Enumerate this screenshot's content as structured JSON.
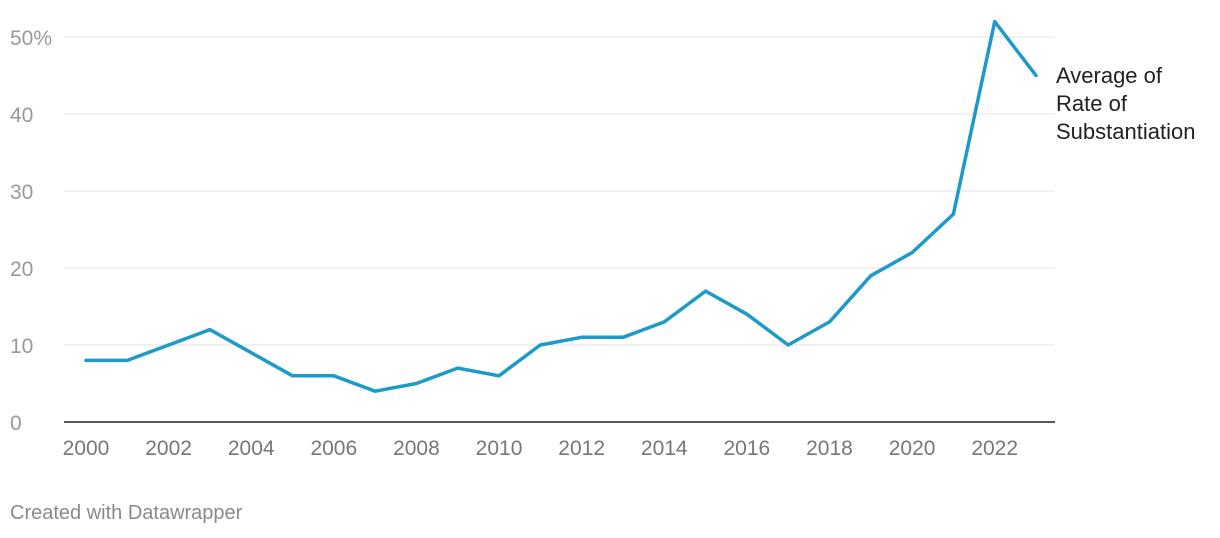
{
  "chart_data": {
    "type": "line",
    "x": [
      2000,
      2001,
      2002,
      2003,
      2004,
      2005,
      2006,
      2007,
      2008,
      2009,
      2010,
      2011,
      2012,
      2013,
      2014,
      2015,
      2016,
      2017,
      2018,
      2019,
      2020,
      2021,
      2022,
      2023
    ],
    "series": [
      {
        "name": "Average of Rate of Substantiation",
        "label_lines": [
          "Average of",
          "Rate of",
          "Substantiation"
        ],
        "values": [
          8,
          8,
          10,
          12,
          9,
          6,
          6,
          4,
          5,
          7,
          6,
          10,
          11,
          11,
          13,
          17,
          14,
          10,
          13,
          19,
          22,
          27,
          52,
          45
        ],
        "color": "#1d9ac8"
      }
    ],
    "ylim": [
      0,
      50
    ],
    "xlim": [
      2000,
      2023
    ],
    "y_ticks": [
      0,
      10,
      20,
      30,
      40,
      50
    ],
    "y_tick_labels": [
      "0",
      "10",
      "20",
      "30",
      "40",
      "50%"
    ],
    "x_ticks": [
      2000,
      2002,
      2004,
      2006,
      2008,
      2010,
      2012,
      2014,
      2016,
      2018,
      2020,
      2022
    ],
    "x_tick_labels": [
      "2000",
      "2002",
      "2004",
      "2006",
      "2008",
      "2010",
      "2012",
      "2014",
      "2016",
      "2018",
      "2020",
      "2022"
    ],
    "grid": true,
    "title": "",
    "xlabel": "",
    "ylabel": ""
  },
  "credit": "Created with Datawrapper"
}
